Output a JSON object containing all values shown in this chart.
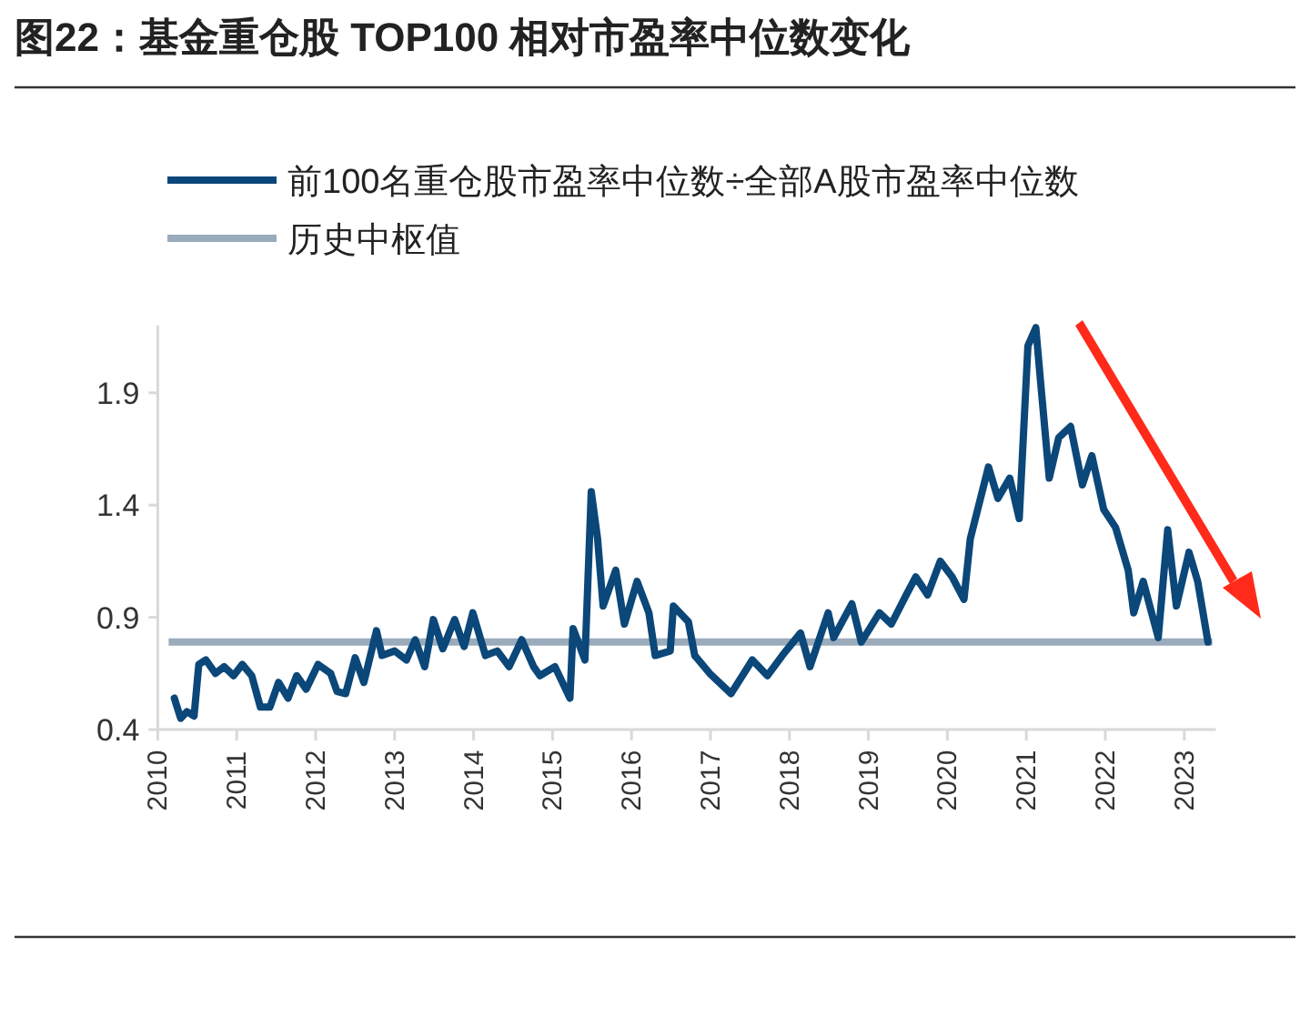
{
  "chart_data": {
    "type": "line",
    "title": "图22：基金重仓股 TOP100 相对市盈率中位数变化",
    "xlim": [
      2010,
      2023.4
    ],
    "xticks": [
      2010,
      2011,
      2012,
      2013,
      2014,
      2015,
      2016,
      2017,
      2018,
      2019,
      2020,
      2021,
      2022,
      2023
    ],
    "ylim": [
      0.4,
      2.2
    ],
    "yticks": [
      0.4,
      0.9,
      1.4,
      1.9
    ],
    "legend": "top",
    "series": [
      {
        "name": "前100名重仓股市盈率中位数÷全部A股市盈率中位数",
        "color": "#0b4779",
        "x": [
          2010.21,
          2010.29,
          2010.37,
          2010.46,
          2010.52,
          2010.61,
          2010.73,
          2010.84,
          2010.96,
          2011.07,
          2011.19,
          2011.3,
          2011.42,
          2011.53,
          2011.65,
          2011.76,
          2011.88,
          2012.03,
          2012.19,
          2012.27,
          2012.38,
          2012.5,
          2012.61,
          2012.77,
          2012.84,
          2013.0,
          2013.15,
          2013.26,
          2013.38,
          2013.49,
          2013.61,
          2013.76,
          2013.88,
          2013.99,
          2014.15,
          2014.3,
          2014.45,
          2014.61,
          2014.76,
          2014.84,
          2015.03,
          2015.22,
          2015.26,
          2015.41,
          2015.49,
          2015.57,
          2015.64,
          2015.8,
          2015.91,
          2016.07,
          2016.22,
          2016.3,
          2016.49,
          2016.53,
          2016.72,
          2016.8,
          2016.99,
          2017.26,
          2017.53,
          2017.72,
          2017.91,
          2018.14,
          2018.26,
          2018.49,
          2018.56,
          2018.79,
          2018.91,
          2019.14,
          2019.29,
          2019.48,
          2019.6,
          2019.75,
          2019.91,
          2020.06,
          2020.21,
          2020.29,
          2020.52,
          2020.64,
          2020.79,
          2020.91,
          2021.02,
          2021.12,
          2021.18,
          2021.29,
          2021.41,
          2021.56,
          2021.71,
          2021.83,
          2021.98,
          2022.13,
          2022.29,
          2022.36,
          2022.48,
          2022.67,
          2022.79,
          2022.9,
          2023.06,
          2023.17,
          2023.3
        ],
        "values": [
          0.54,
          0.45,
          0.48,
          0.46,
          0.69,
          0.71,
          0.65,
          0.68,
          0.64,
          0.69,
          0.64,
          0.5,
          0.5,
          0.61,
          0.54,
          0.64,
          0.58,
          0.69,
          0.65,
          0.57,
          0.56,
          0.72,
          0.61,
          0.84,
          0.73,
          0.75,
          0.71,
          0.8,
          0.68,
          0.89,
          0.76,
          0.89,
          0.77,
          0.92,
          0.73,
          0.75,
          0.68,
          0.8,
          0.68,
          0.64,
          0.68,
          0.54,
          0.85,
          0.71,
          1.46,
          1.25,
          0.95,
          1.11,
          0.87,
          1.06,
          0.92,
          0.73,
          0.75,
          0.95,
          0.88,
          0.73,
          0.65,
          0.56,
          0.71,
          0.64,
          0.73,
          0.83,
          0.68,
          0.92,
          0.81,
          0.96,
          0.79,
          0.92,
          0.87,
          1.0,
          1.08,
          1.0,
          1.15,
          1.08,
          0.98,
          1.25,
          1.57,
          1.43,
          1.52,
          1.34,
          2.11,
          2.19,
          1.95,
          1.52,
          1.7,
          1.75,
          1.49,
          1.62,
          1.38,
          1.3,
          1.11,
          0.92,
          1.06,
          0.81,
          1.29,
          0.95,
          1.19,
          1.06,
          0.79
        ]
      }
    ],
    "ref_lines": [
      {
        "axis": "y",
        "value": 0.79,
        "label": "历史中枢值",
        "color": "#9aabbb"
      }
    ]
  }
}
